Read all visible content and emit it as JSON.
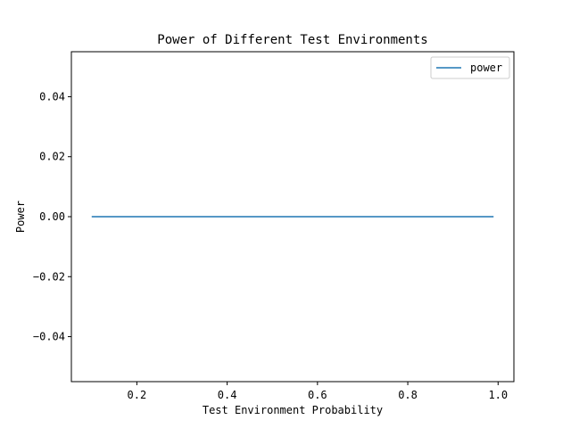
{
  "chart_data": {
    "type": "line",
    "title": "Power of Different Test Environments",
    "xlabel": "Test Environment Probability",
    "ylabel": "Power",
    "xlim": [
      0.055,
      1.035
    ],
    "ylim": [
      -0.055,
      0.055
    ],
    "xticks": [
      0.2,
      0.4,
      0.6,
      0.8,
      1.0
    ],
    "xtick_labels": [
      "0.2",
      "0.4",
      "0.6",
      "0.8",
      "1.0"
    ],
    "yticks": [
      -0.04,
      -0.02,
      0.0,
      0.02,
      0.04
    ],
    "ytick_labels": [
      "−0.04",
      "−0.02",
      "0.00",
      "0.02",
      "0.04"
    ],
    "grid": false,
    "legend_position": "top-right",
    "series": [
      {
        "name": "power",
        "color": "#1f77b4",
        "x": [
          0.1,
          0.99
        ],
        "y": [
          0.0,
          0.0
        ]
      }
    ]
  }
}
